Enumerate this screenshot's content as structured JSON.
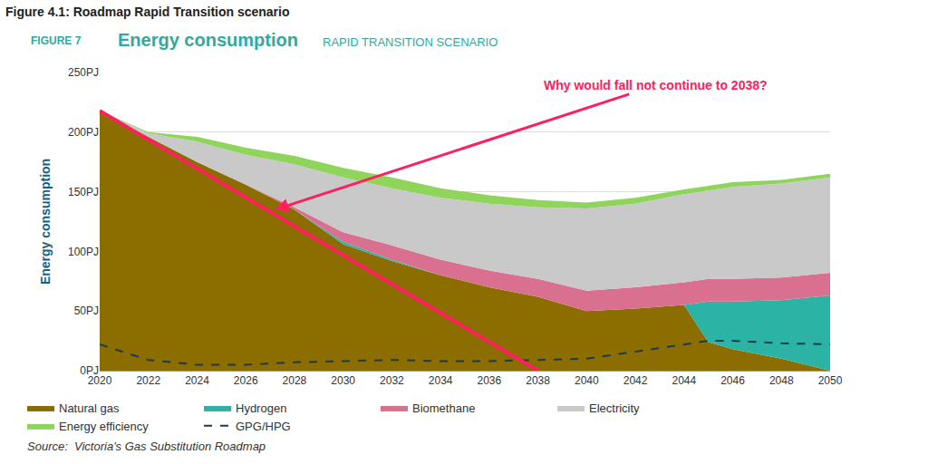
{
  "chart_data": {
    "type": "area",
    "stacked": true,
    "figure_caption": "Figure 4.1: Roadmap Rapid Transition scenario",
    "figure_label": "FIGURE 7",
    "title": "Energy consumption",
    "subtitle": "RAPID TRANSITION SCENARIO",
    "y_label": "Energy consumption",
    "source": "Source:  Victoria's Gas Substitution Roadmap",
    "x": [
      2020,
      2022,
      2024,
      2026,
      2028,
      2030,
      2032,
      2034,
      2036,
      2038,
      2040,
      2042,
      2044,
      2045,
      2046,
      2048,
      2050
    ],
    "series": [
      {
        "name": "Natural gas",
        "color": "#8c6d00",
        "values": [
          218,
          196,
          175,
          156,
          135,
          106,
          92,
          80,
          70,
          62,
          50,
          52,
          55,
          24,
          18,
          10,
          0
        ]
      },
      {
        "name": "Hydrogen",
        "color": "#2bb3a6",
        "values": [
          0,
          0,
          0,
          0,
          0,
          2,
          1,
          0,
          0,
          0,
          0,
          0,
          0,
          34,
          40,
          49,
          63
        ]
      },
      {
        "name": "Biomethane",
        "color": "#d9708f",
        "values": [
          0,
          0,
          0,
          0,
          2,
          8,
          12,
          13,
          14,
          15,
          17,
          18,
          19,
          19,
          19,
          19,
          19
        ]
      },
      {
        "name": "Electricity",
        "color": "#c9c9c9",
        "values": [
          0,
          3,
          17,
          25,
          36,
          46,
          48,
          52,
          56,
          60,
          69,
          70,
          74,
          74,
          77,
          79,
          80
        ]
      },
      {
        "name": "Energy efficiency",
        "color": "#8fd45b",
        "values": [
          0,
          1,
          4,
          6,
          7,
          8,
          9,
          8,
          7,
          6,
          5,
          5,
          4,
          4,
          4,
          3,
          3
        ]
      },
      {
        "name": "GPG/HPG",
        "color": "#1d3b4f",
        "type": "line",
        "line_style": "dashed",
        "values": [
          22,
          9,
          5,
          5,
          7,
          8,
          9,
          8,
          8,
          9,
          10,
          16,
          22,
          25,
          25,
          23,
          22
        ]
      }
    ],
    "xlim": [
      2020,
      2050
    ],
    "xticks": [
      2020,
      2022,
      2024,
      2026,
      2028,
      2030,
      2032,
      2034,
      2036,
      2038,
      2040,
      2042,
      2044,
      2046,
      2048,
      2050
    ],
    "ylim": [
      0,
      250
    ],
    "yticks": [
      {
        "value": 0,
        "label": "0PJ"
      },
      {
        "value": 50,
        "label": "50PJ"
      },
      {
        "value": 100,
        "label": "100PJ"
      },
      {
        "value": 150,
        "label": "150PJ"
      },
      {
        "value": 200,
        "label": "200PJ"
      },
      {
        "value": 250,
        "label": "250PJ"
      }
    ],
    "grid": true,
    "legend": "bottom",
    "annotations": [
      {
        "type": "line",
        "x": [
          2020,
          2038
        ],
        "y": [
          218,
          0
        ],
        "color": "#ff1f5e"
      },
      {
        "type": "arrow",
        "text": "Why would fall not continue to 2038?",
        "x": 2027.2,
        "y": 135,
        "color": "#ff1f5e"
      }
    ]
  }
}
